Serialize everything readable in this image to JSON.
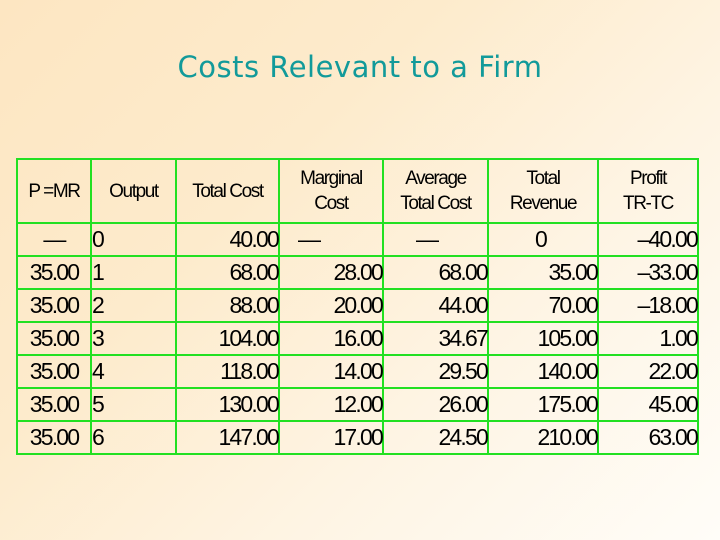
{
  "slide": {
    "title": "Costs Relevant to a Firm"
  },
  "table": {
    "headers": [
      {
        "line1": "P =MR",
        "line2": ""
      },
      {
        "line1": "Output",
        "line2": ""
      },
      {
        "line1": "Total Cost",
        "line2": ""
      },
      {
        "line1": "Marginal",
        "line2": "Cost"
      },
      {
        "line1": "Average",
        "line2": "Total Cost"
      },
      {
        "line1": "Total",
        "line2": "Revenue"
      },
      {
        "line1": "Profit",
        "line2": "TR-TC"
      }
    ],
    "rows": [
      [
        "—",
        "0",
        "40.00",
        "—",
        "—",
        "0",
        "–40.00"
      ],
      [
        "35.00",
        "1",
        "68.00",
        "28.00",
        "68.00",
        "35.00",
        "–33.00"
      ],
      [
        "35.00",
        "2",
        "88.00",
        "20.00",
        "44.00",
        "70.00",
        "–18.00"
      ],
      [
        "35.00",
        "3",
        "104.00",
        "16.00",
        "34.67",
        "105.00",
        "1.00"
      ],
      [
        "35.00",
        "4",
        "118.00",
        "14.00",
        "29.50",
        "140.00",
        "22.00"
      ],
      [
        "35.00",
        "5",
        "130.00",
        "12.00",
        "26.00",
        "175.00",
        "45.00"
      ],
      [
        "35.00",
        "6",
        "147.00",
        "17.00",
        "24.50",
        "210.00",
        "63.00"
      ]
    ]
  },
  "colors": {
    "title": "#129a9a",
    "grid": "#22e022",
    "text": "#000000"
  }
}
